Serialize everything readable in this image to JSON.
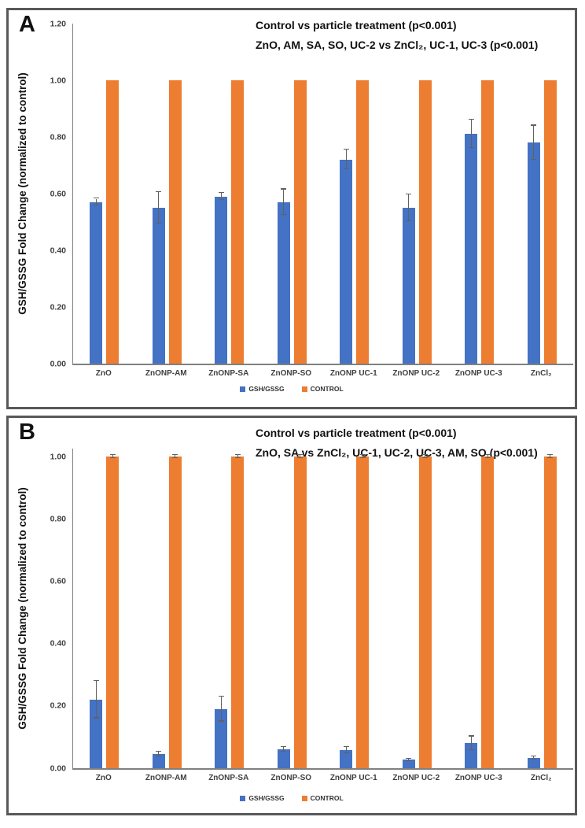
{
  "figure": {
    "description_visible_panels": [
      "A",
      "B"
    ]
  },
  "legend": {
    "items": [
      {
        "label": "GSH/GSSG",
        "color": "#4472C4"
      },
      {
        "label": "CONTROL",
        "color": "#ED7D31"
      }
    ]
  },
  "chart_data": [
    {
      "type": "bar",
      "panel_label": "A",
      "title": "Control vs particle treatment (p<0.001) / ZnO, AM, SA, SO, UC-2 vs ZnCl₂, UC-1, UC-3 (p<0.001)",
      "title_line1": "Control vs particle treatment (p<0.001)",
      "title_line2": "ZnO, AM, SA, SO, UC-2 vs ZnCl₂, UC-1, UC-3 (p<0.001)",
      "ylabel": "GSH/GSSG Fold Change (normalized to control)",
      "xlabel": "",
      "categories": [
        "ZnO",
        "ZnONP-AM",
        "ZnONP-SA",
        "ZnONP-SO",
        "ZnONP UC-1",
        "ZnONP UC-2",
        "ZnONP UC-3",
        "ZnCl₂"
      ],
      "series": [
        {
          "name": "GSH/GSSG",
          "color": "#4472C4",
          "values": [
            0.57,
            0.55,
            0.59,
            0.57,
            0.72,
            0.55,
            0.81,
            0.78
          ],
          "errors": [
            0.012,
            0.055,
            0.012,
            0.045,
            0.035,
            0.047,
            0.05,
            0.06
          ]
        },
        {
          "name": "CONTROL",
          "color": "#ED7D31",
          "values": [
            1.0,
            1.0,
            1.0,
            1.0,
            1.0,
            1.0,
            1.0,
            1.0
          ],
          "errors": [
            0,
            0,
            0,
            0,
            0,
            0,
            0,
            0
          ]
        }
      ],
      "ylim": [
        0,
        1.2
      ],
      "ytick_step": 0.2,
      "grid": false,
      "legend_position": "bottom"
    },
    {
      "type": "bar",
      "panel_label": "B",
      "title": "Control vs particle treatment (p<0.001) / ZnO, SA vs ZnCl₂, UC-1, UC-2, UC-3, AM, SO (p<0.001)",
      "title_line1": "Control vs particle treatment (p<0.001)",
      "title_line2": "ZnO, SA vs ZnCl₂, UC-1, UC-2, UC-3, AM, SO (p<0.001)",
      "ylabel": "GSH/GSSG Fold Change (normalized to control)",
      "xlabel": "",
      "categories": [
        "ZnO",
        "ZnONP-AM",
        "ZnONP-SA",
        "ZnONP-SO",
        "ZnONP UC-1",
        "ZnONP UC-2",
        "ZnONP UC-3",
        "ZnCl₂"
      ],
      "series": [
        {
          "name": "GSH/GSSG",
          "color": "#4472C4",
          "values": [
            0.22,
            0.045,
            0.19,
            0.06,
            0.057,
            0.027,
            0.08,
            0.032
          ],
          "errors": [
            0.06,
            0.008,
            0.04,
            0.008,
            0.01,
            0.004,
            0.022,
            0.005
          ]
        },
        {
          "name": "CONTROL",
          "color": "#ED7D31",
          "values": [
            1.0,
            1.0,
            1.0,
            1.0,
            1.0,
            1.0,
            1.0,
            1.0
          ],
          "errors": [
            0.005,
            0.005,
            0.005,
            0.005,
            0.005,
            0.005,
            0.005,
            0.005
          ]
        }
      ],
      "ylim": [
        0,
        1.0
      ],
      "ytick_step": 0.2,
      "grid": false,
      "legend_position": "bottom"
    }
  ]
}
